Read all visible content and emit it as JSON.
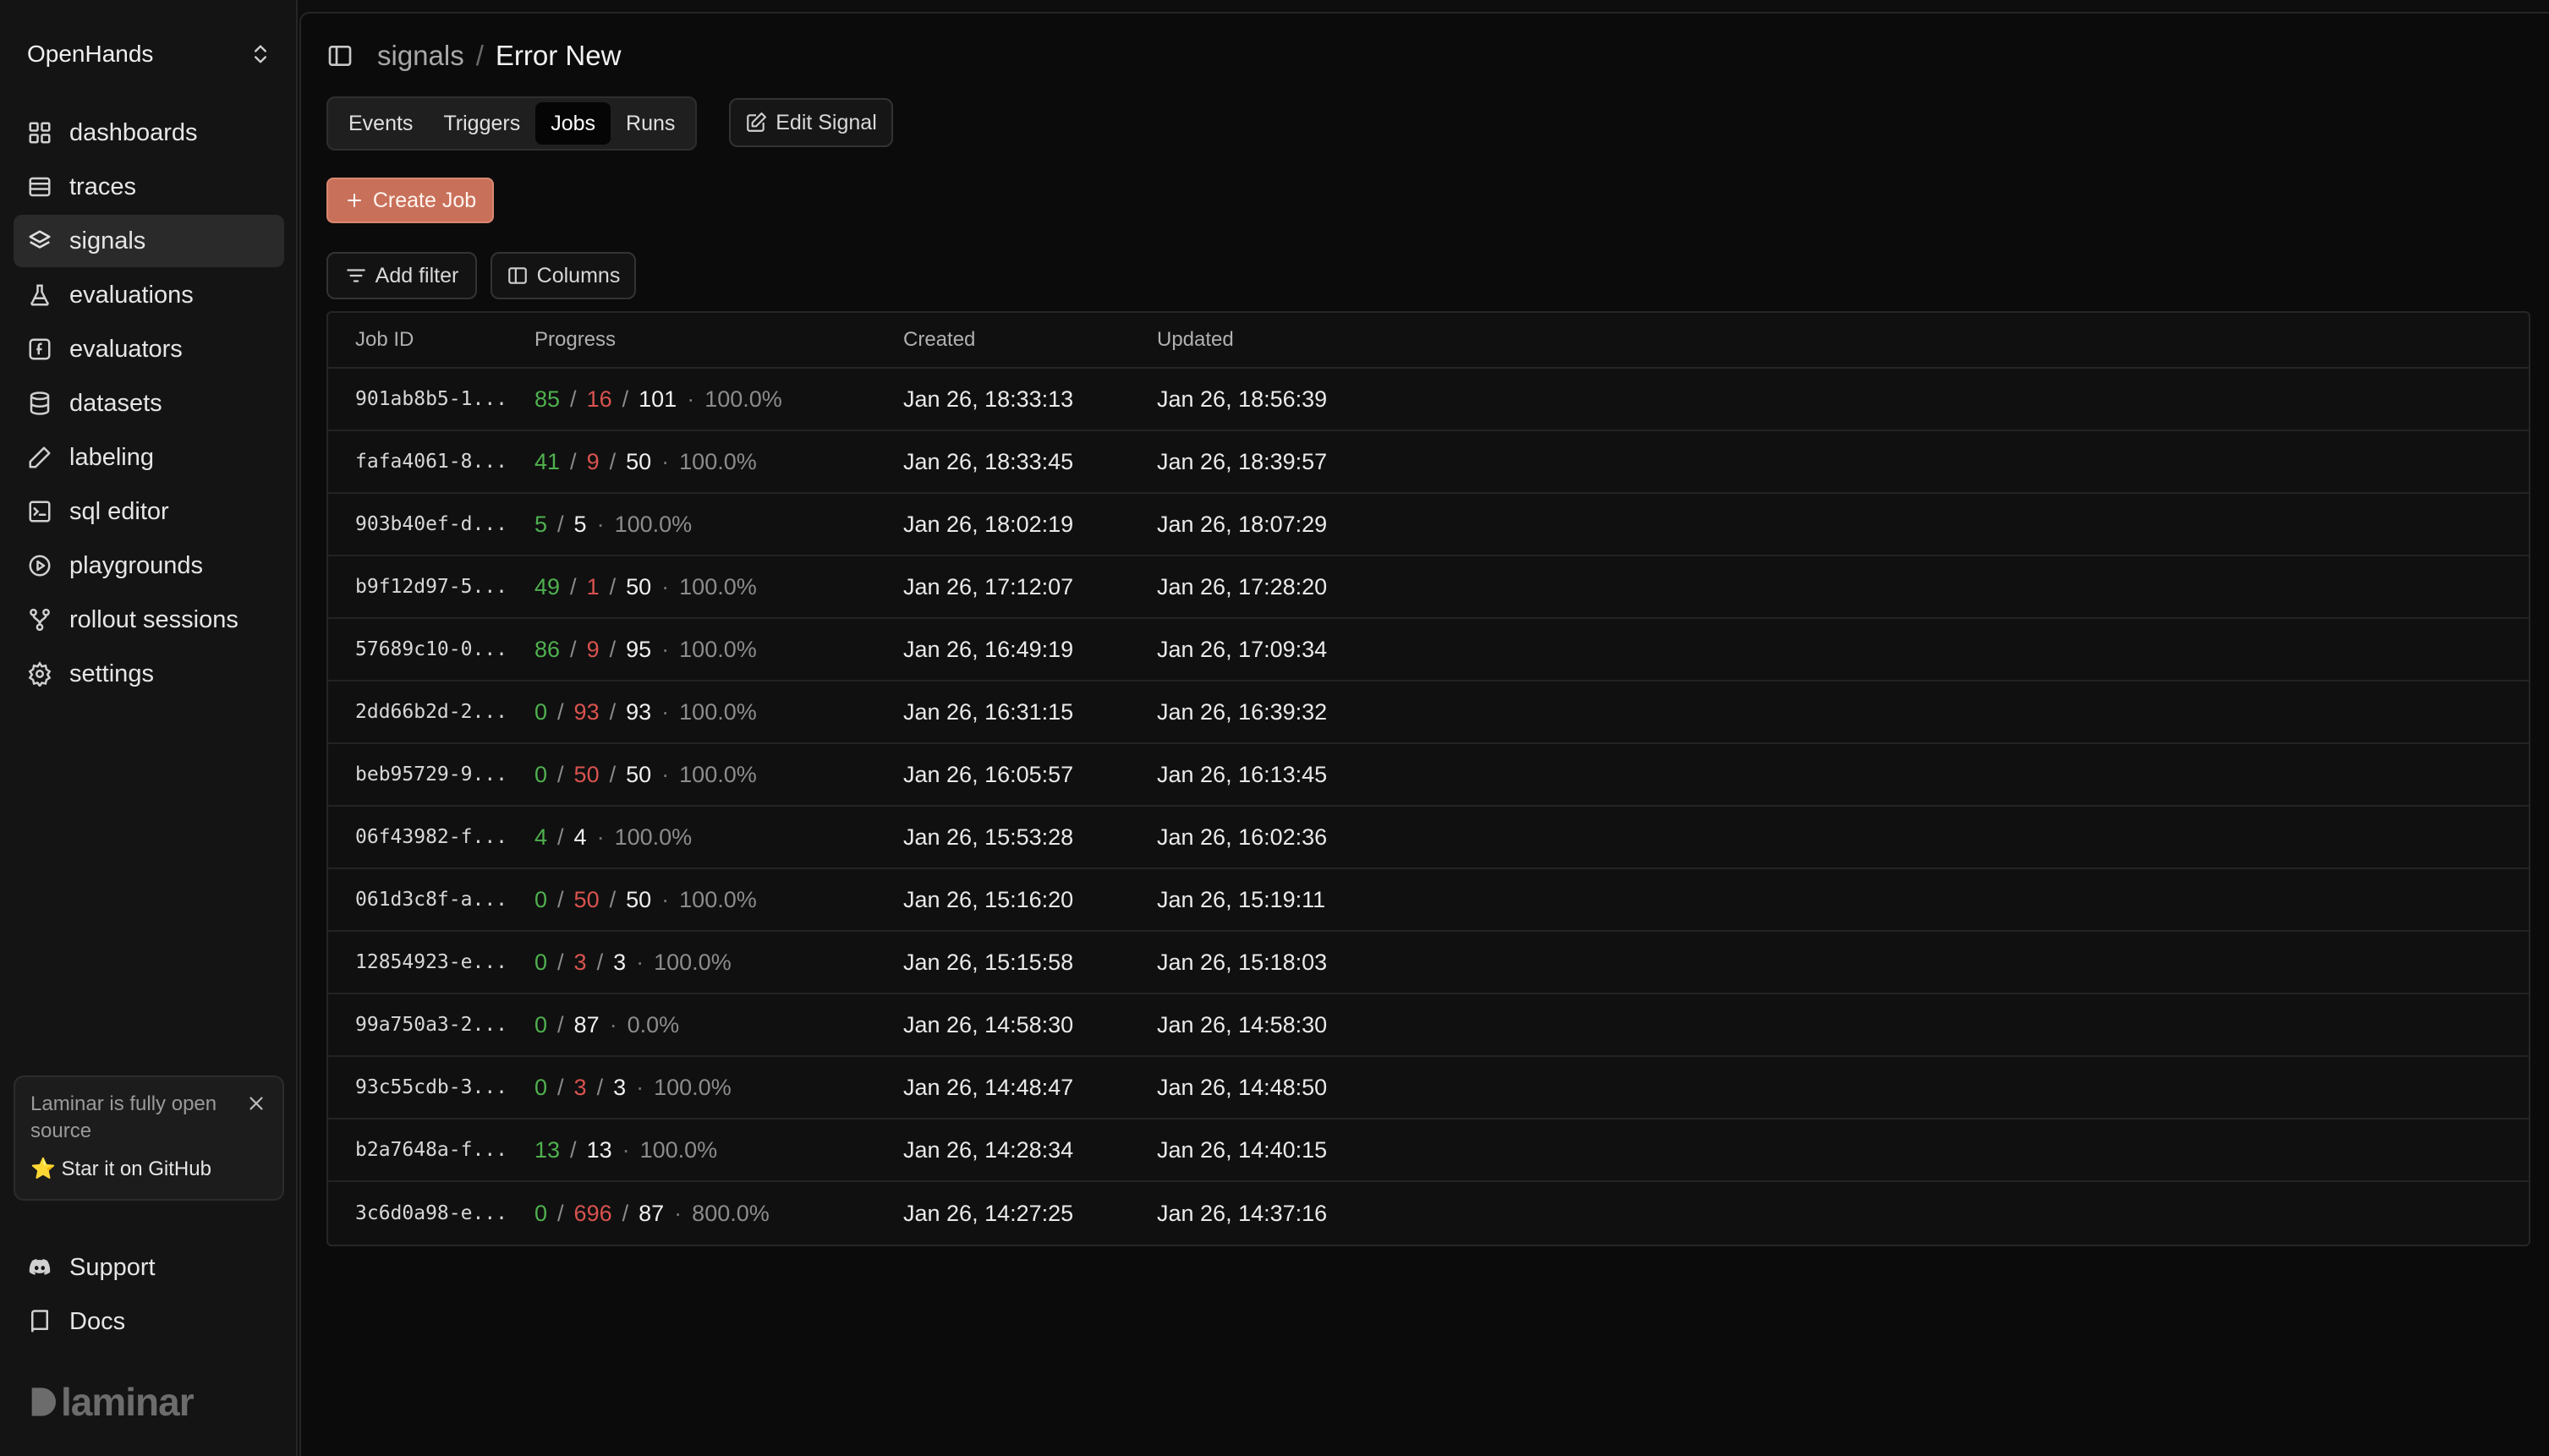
{
  "org": {
    "name": "OpenHands"
  },
  "sidebar": {
    "items": [
      {
        "label": "dashboards",
        "icon": "grid-icon"
      },
      {
        "label": "traces",
        "icon": "list-icon"
      },
      {
        "label": "signals",
        "icon": "layers-icon",
        "active": true
      },
      {
        "label": "evaluations",
        "icon": "flask-icon"
      },
      {
        "label": "evaluators",
        "icon": "function-icon"
      },
      {
        "label": "datasets",
        "icon": "database-icon"
      },
      {
        "label": "labeling",
        "icon": "pen-icon"
      },
      {
        "label": "sql editor",
        "icon": "terminal-icon"
      },
      {
        "label": "playgrounds",
        "icon": "play-circle-icon"
      },
      {
        "label": "rollout sessions",
        "icon": "branch-icon"
      },
      {
        "label": "settings",
        "icon": "gear-icon"
      }
    ],
    "promo": {
      "text": "Laminar is fully open source",
      "link": "⭐ Star it on GitHub"
    },
    "footer": [
      {
        "label": "Support",
        "icon": "discord-icon"
      },
      {
        "label": "Docs",
        "icon": "book-icon"
      }
    ],
    "brand": "laminar"
  },
  "header": {
    "parent": "signals",
    "separator": "/",
    "current": "Error New"
  },
  "tabs": [
    {
      "label": "Events"
    },
    {
      "label": "Triggers"
    },
    {
      "label": "Jobs",
      "active": true
    },
    {
      "label": "Runs"
    }
  ],
  "toolbar": {
    "edit_label": "Edit Signal",
    "create_label": "Create Job",
    "filter_label": "Add filter",
    "columns_label": "Columns"
  },
  "table": {
    "columns": [
      "Job ID",
      "Progress",
      "Created",
      "Updated"
    ],
    "rows": [
      {
        "id": "901ab8b5-1...",
        "ok": "85",
        "err": "16",
        "total": "101",
        "pct": "100.0%",
        "created": "Jan 26, 18:33:13",
        "updated": "Jan 26, 18:56:39"
      },
      {
        "id": "fafa4061-8...",
        "ok": "41",
        "err": "9",
        "total": "50",
        "pct": "100.0%",
        "created": "Jan 26, 18:33:45",
        "updated": "Jan 26, 18:39:57"
      },
      {
        "id": "903b40ef-d...",
        "ok": "5",
        "err": null,
        "total": "5",
        "pct": "100.0%",
        "created": "Jan 26, 18:02:19",
        "updated": "Jan 26, 18:07:29"
      },
      {
        "id": "b9f12d97-5...",
        "ok": "49",
        "err": "1",
        "total": "50",
        "pct": "100.0%",
        "created": "Jan 26, 17:12:07",
        "updated": "Jan 26, 17:28:20"
      },
      {
        "id": "57689c10-0...",
        "ok": "86",
        "err": "9",
        "total": "95",
        "pct": "100.0%",
        "created": "Jan 26, 16:49:19",
        "updated": "Jan 26, 17:09:34"
      },
      {
        "id": "2dd66b2d-2...",
        "ok": "0",
        "err": "93",
        "total": "93",
        "pct": "100.0%",
        "created": "Jan 26, 16:31:15",
        "updated": "Jan 26, 16:39:32"
      },
      {
        "id": "beb95729-9...",
        "ok": "0",
        "err": "50",
        "total": "50",
        "pct": "100.0%",
        "created": "Jan 26, 16:05:57",
        "updated": "Jan 26, 16:13:45"
      },
      {
        "id": "06f43982-f...",
        "ok": "4",
        "err": null,
        "total": "4",
        "pct": "100.0%",
        "created": "Jan 26, 15:53:28",
        "updated": "Jan 26, 16:02:36"
      },
      {
        "id": "061d3c8f-a...",
        "ok": "0",
        "err": "50",
        "total": "50",
        "pct": "100.0%",
        "created": "Jan 26, 15:16:20",
        "updated": "Jan 26, 15:19:11"
      },
      {
        "id": "12854923-e...",
        "ok": "0",
        "err": "3",
        "total": "3",
        "pct": "100.0%",
        "created": "Jan 26, 15:15:58",
        "updated": "Jan 26, 15:18:03"
      },
      {
        "id": "99a750a3-2...",
        "ok": "0",
        "err": null,
        "total": "87",
        "pct": "0.0%",
        "created": "Jan 26, 14:58:30",
        "updated": "Jan 26, 14:58:30"
      },
      {
        "id": "93c55cdb-3...",
        "ok": "0",
        "err": "3",
        "total": "3",
        "pct": "100.0%",
        "created": "Jan 26, 14:48:47",
        "updated": "Jan 26, 14:48:50"
      },
      {
        "id": "b2a7648a-f...",
        "ok": "13",
        "err": null,
        "total": "13",
        "pct": "100.0%",
        "created": "Jan 26, 14:28:34",
        "updated": "Jan 26, 14:40:15"
      },
      {
        "id": "3c6d0a98-e...",
        "ok": "0",
        "err": "696",
        "total": "87",
        "pct": "800.0%",
        "created": "Jan 26, 14:27:25",
        "updated": "Jan 26, 14:37:16"
      }
    ]
  },
  "colors": {
    "accent": "#c9705a",
    "success": "#4fb04f",
    "error": "#d9534f"
  }
}
